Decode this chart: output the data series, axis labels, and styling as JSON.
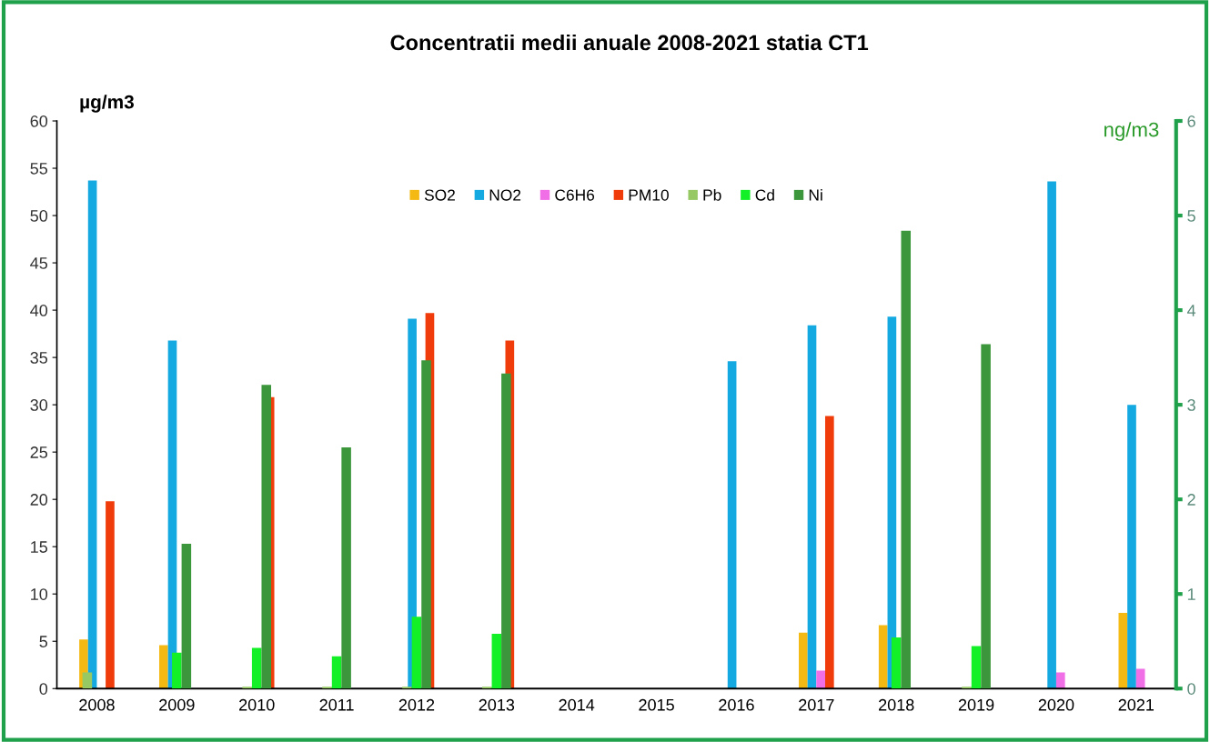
{
  "chart_data": {
    "type": "bar",
    "title": "Concentratii medii anuale 2008-2021 statia CT1",
    "ylabel": "µg/m3",
    "y2label": "ng/m3",
    "categories": [
      "2008",
      "2009",
      "2010",
      "2011",
      "2012",
      "2013",
      "2014",
      "2015",
      "2016",
      "2017",
      "2018",
      "2019",
      "2020",
      "2021"
    ],
    "series": [
      {
        "name": "SO2",
        "color": "#f5b914",
        "values": [
          5.2,
          4.6,
          null,
          null,
          null,
          null,
          null,
          null,
          null,
          5.9,
          6.7,
          null,
          null,
          8.0
        ]
      },
      {
        "name": "NO2",
        "color": "#14a9e0",
        "values": [
          53.7,
          36.8,
          null,
          null,
          39.1,
          null,
          null,
          null,
          34.6,
          38.4,
          39.3,
          null,
          53.6,
          30.0
        ]
      },
      {
        "name": "C6H6",
        "color": "#f06ee6",
        "values": [
          null,
          null,
          null,
          null,
          null,
          null,
          null,
          null,
          null,
          1.9,
          null,
          null,
          1.7,
          2.1
        ]
      },
      {
        "name": "PM10",
        "color": "#f03c0a",
        "values": [
          19.8,
          null,
          30.8,
          null,
          39.7,
          36.8,
          null,
          null,
          null,
          28.8,
          null,
          null,
          null,
          null
        ]
      },
      {
        "name": "Pb",
        "color": "#96c864",
        "axis": "y2",
        "values": [
          0.17,
          null,
          0.02,
          0.02,
          0.02,
          0.02,
          null,
          null,
          null,
          null,
          null,
          0.02,
          null,
          null
        ]
      },
      {
        "name": "Cd",
        "color": "#14f028",
        "axis": "y2",
        "values": [
          null,
          0.38,
          0.43,
          0.34,
          0.76,
          0.58,
          null,
          null,
          null,
          null,
          0.54,
          0.45,
          null,
          null
        ]
      },
      {
        "name": "Ni",
        "color": "#3c963c",
        "axis": "y2",
        "values": [
          null,
          1.53,
          3.21,
          2.55,
          3.47,
          3.33,
          null,
          null,
          null,
          null,
          4.84,
          3.64,
          null,
          null
        ]
      }
    ],
    "ylim": [
      0,
      60
    ],
    "yticks": [
      0,
      5,
      10,
      15,
      20,
      25,
      30,
      35,
      40,
      45,
      50,
      55,
      60
    ],
    "y2lim": [
      0,
      6
    ],
    "y2ticks": [
      0,
      1,
      2,
      3,
      4,
      5,
      6
    ],
    "grid": false,
    "legend": "top"
  }
}
